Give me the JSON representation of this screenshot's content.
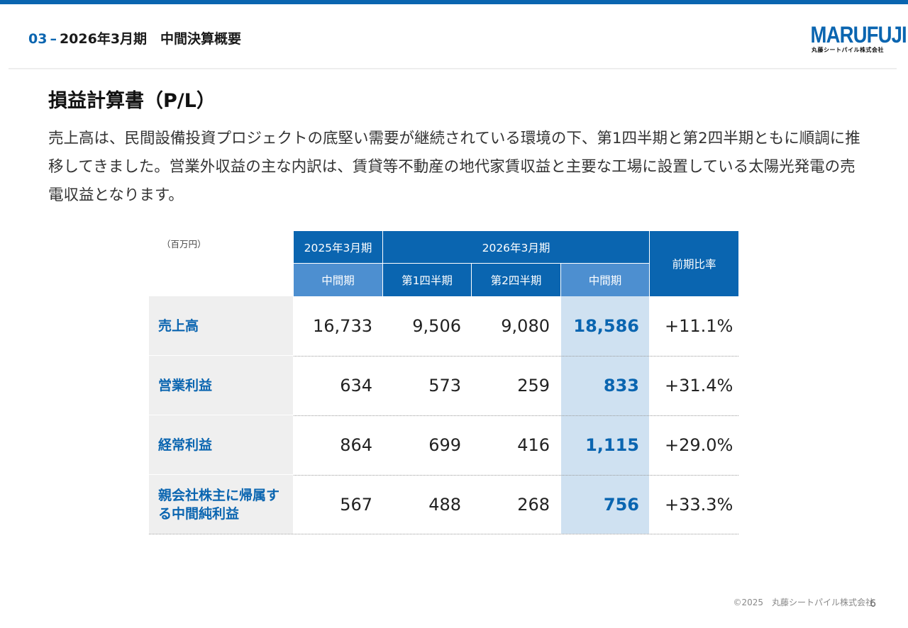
{
  "header": {
    "section_number": "03",
    "dash": "–",
    "title": "2026年3月期　中間決算概要"
  },
  "logo": {
    "brand": "MARUFUJI",
    "company": "丸藤シートパイル株式会社"
  },
  "section_title": "損益計算書（P/L）",
  "description": "売上高は、民間設備投資プロジェクトの底堅い需要が継続されている環境の下、第1四半期と第2四半期ともに順調に推移してきました。営業外収益の主な内訳は、賃貸等不動産の地代家賃収益と主要な工場に設置している太陽光発電の売電収益となります。",
  "table": {
    "unit": "（百万円）",
    "groups": {
      "prev": "2025年3月期",
      "curr": "2026年3月期",
      "ratio": "前期比率"
    },
    "subheaders": [
      "中間期",
      "第1四半期",
      "第2四半期",
      "中間期"
    ],
    "rows": [
      {
        "label": "売上高",
        "values": [
          "16,733",
          "9,506",
          "9,080",
          "18,586"
        ],
        "ratio": "+11.1%"
      },
      {
        "label": "営業利益",
        "values": [
          "634",
          "573",
          "259",
          "833"
        ],
        "ratio": "+31.4%"
      },
      {
        "label": "経常利益",
        "values": [
          "864",
          "699",
          "416",
          "1,115"
        ],
        "ratio": "+29.0%"
      },
      {
        "label": "親会社株主に帰属する中間純利益",
        "values": [
          "567",
          "488",
          "268",
          "756"
        ],
        "ratio": "+33.3%"
      }
    ]
  },
  "footer": {
    "copyright": "©2025　丸藤シートパイル株式会社",
    "page": "6"
  },
  "colors": {
    "brand_blue": "#0a65b0",
    "light_blue": "#4d8fd0",
    "highlight_column": "#cfe1f1",
    "label_bg": "#efefef"
  }
}
